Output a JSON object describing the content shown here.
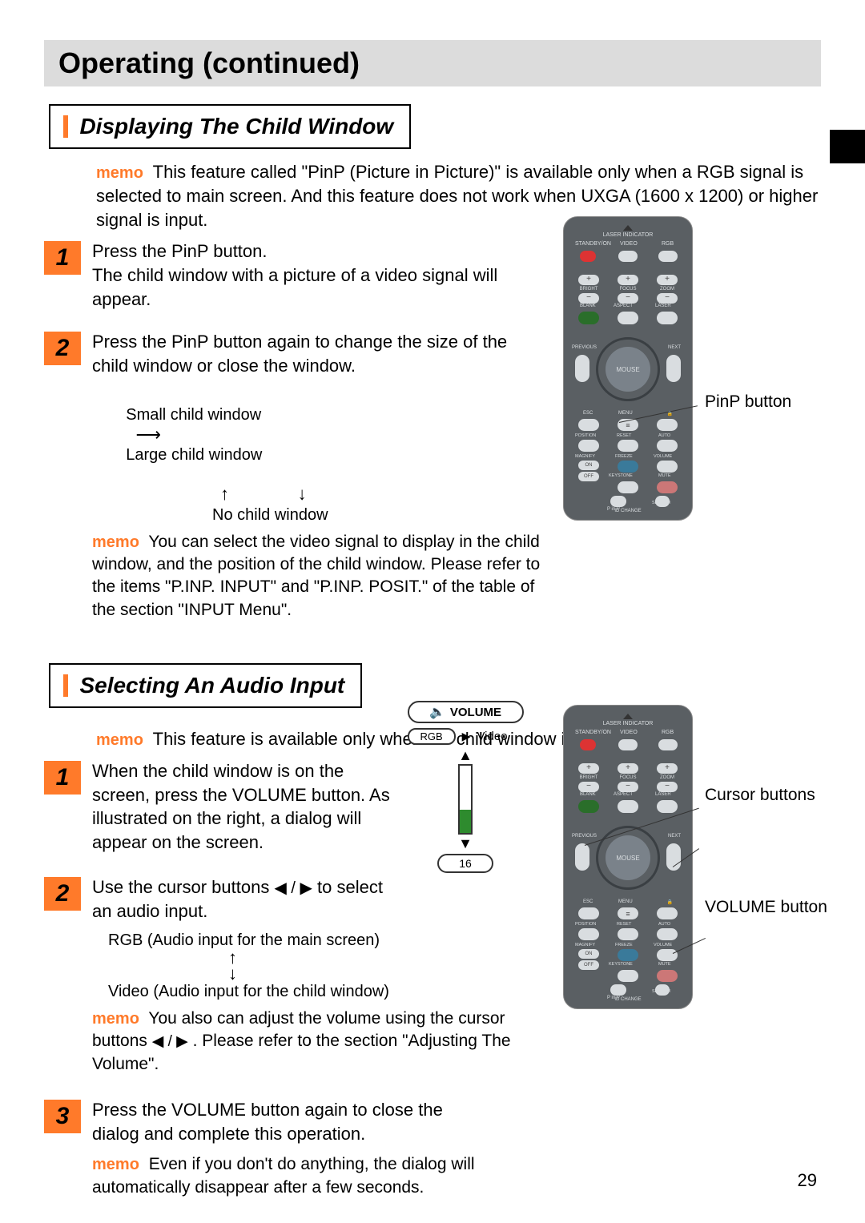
{
  "page": {
    "title": "Operating (continued)",
    "number": "29"
  },
  "section1": {
    "heading": "Displaying The Child Window",
    "memo_label": "memo",
    "memo": "This feature called \"PinP (Picture in Picture)\" is available only when a RGB signal is selected to main screen. And this feature does not work when UXGA (1600 x 1200) or higher signal is input.",
    "steps": [
      {
        "num": "1",
        "text": "Press the PinP button.\nThe child window with a picture of a video signal will appear."
      },
      {
        "num": "2",
        "text": "Press the PinP button again to change the size of the child window or close the window."
      }
    ],
    "flow1": "Small child window",
    "flow2": "Large child window",
    "flow3": "No child window",
    "memo2": "You can select the video signal to display in the child window, and the position of the child window. Please refer to the items \"P.INP. INPUT\" and \"P.INP. POSIT.\" of the table of the section \"INPUT Menu\".",
    "callout1": "PinP button"
  },
  "section2": {
    "heading": "Selecting An Audio Input",
    "memo_label": "memo",
    "memo": "This feature is available only when the child window is on the screen.",
    "steps": [
      {
        "num": "1",
        "text": "When the child window is on the screen, press the VOLUME button. As illustrated on the right, a dialog will appear on the screen."
      },
      {
        "num": "2",
        "text_pre": "Use the cursor buttons  ",
        "text_post": "  to select an audio input."
      },
      {
        "num": "3",
        "text": "Press the VOLUME button again to close the dialog and complete this operation."
      }
    ],
    "flow1": "RGB (Audio input for the main screen)",
    "flow2": "Video (Audio input for the child window)",
    "memo2_pre": "You also can adjust the volume using the cursor buttons  ",
    "memo2_post": " . Please refer to the section \"Adjusting The Volume\".",
    "memo3": "Even if you don't do anything, the dialog will automatically disappear after a few seconds.",
    "callout_cursor": "Cursor buttons",
    "callout_volume": "VOLUME button"
  },
  "volume_dialog": {
    "title": "VOLUME",
    "rgb": "RGB",
    "video": "Video",
    "level": "16",
    "fill_percent": 35,
    "fill_color": "#2e8b2e"
  },
  "remote": {
    "labels": {
      "laser": "LASER INDICATOR",
      "standby": "STANDBY/ON",
      "video": "VIDEO",
      "rgb": "RGB",
      "brightness": "BRIGHT",
      "focus": "FOCUS",
      "zoom": "ZOOM",
      "blank": "BLANK",
      "aspect": "ASPECT",
      "laser2": "LASER",
      "previous": "PREVIOUS",
      "next": "NEXT",
      "mouse": "MOUSE",
      "esc": "ESC",
      "menu": "MENU",
      "lock": "🔒",
      "position": "POSITION",
      "reset": "RESET",
      "auto": "AUTO",
      "magnify": "MAGNIFY",
      "freeze": "FREEZE",
      "volume": "VOLUME",
      "keystone": "KEYSTONE",
      "mute": "MUTE",
      "search": "SEARCH",
      "pinp": "P in P",
      "on": "ON",
      "off": "OFF",
      "idchange": "ID CHANGE"
    }
  },
  "colors": {
    "accent": "#ff7a2a",
    "title_bg": "#dcdcdc",
    "remote_body": "#5a5f63"
  }
}
